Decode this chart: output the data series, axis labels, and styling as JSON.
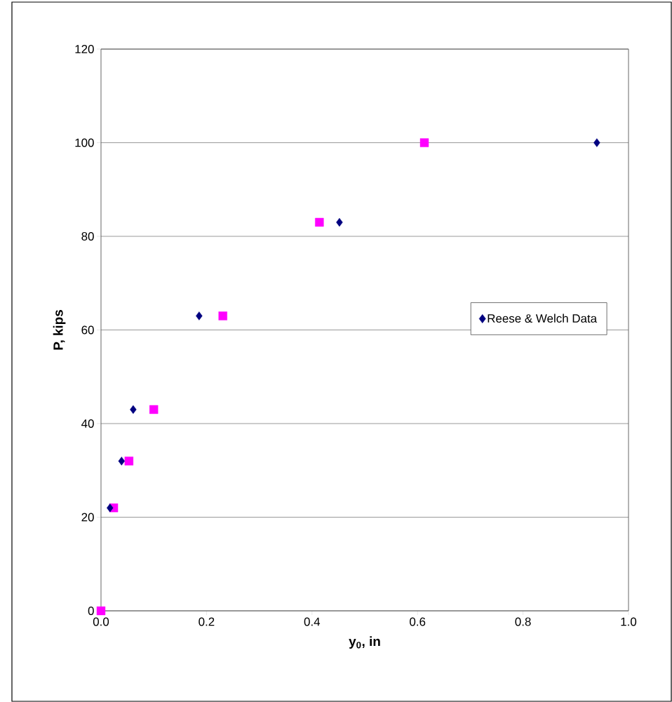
{
  "chart_data": {
    "type": "scatter",
    "xlabel": "y$_{0}$, in",
    "ylabel": "P, kips",
    "xlim": [
      0,
      1
    ],
    "ylim": [
      0,
      120
    ],
    "xticks": [
      {
        "value": 0,
        "label": "0.0"
      },
      {
        "value": 0.2,
        "label": "0.2"
      },
      {
        "value": 0.4,
        "label": "0.4"
      },
      {
        "value": 0.6,
        "label": "0.6"
      },
      {
        "value": 0.8,
        "label": "0.8"
      },
      {
        "value": 1,
        "label": "1.0"
      }
    ],
    "yticks": [
      0,
      20,
      40,
      60,
      80,
      100,
      120
    ],
    "grid": "y",
    "legend": "right",
    "series": [
      {
        "name": "Reese & Welch Data",
        "color": "#000080",
        "marker": "diamond",
        "x": [
          0.017,
          0.039,
          0.061,
          0.186,
          0.452,
          0.94
        ],
        "values": [
          22,
          32,
          43,
          63,
          83,
          100
        ]
      },
      {
        "color": "#ff00ff",
        "marker": "square",
        "x": [
          0,
          0.024,
          0.053,
          0.1,
          0.231,
          0.414,
          0.613
        ],
        "values": [
          0,
          22,
          32,
          43,
          63,
          83,
          100
        ]
      }
    ]
  }
}
